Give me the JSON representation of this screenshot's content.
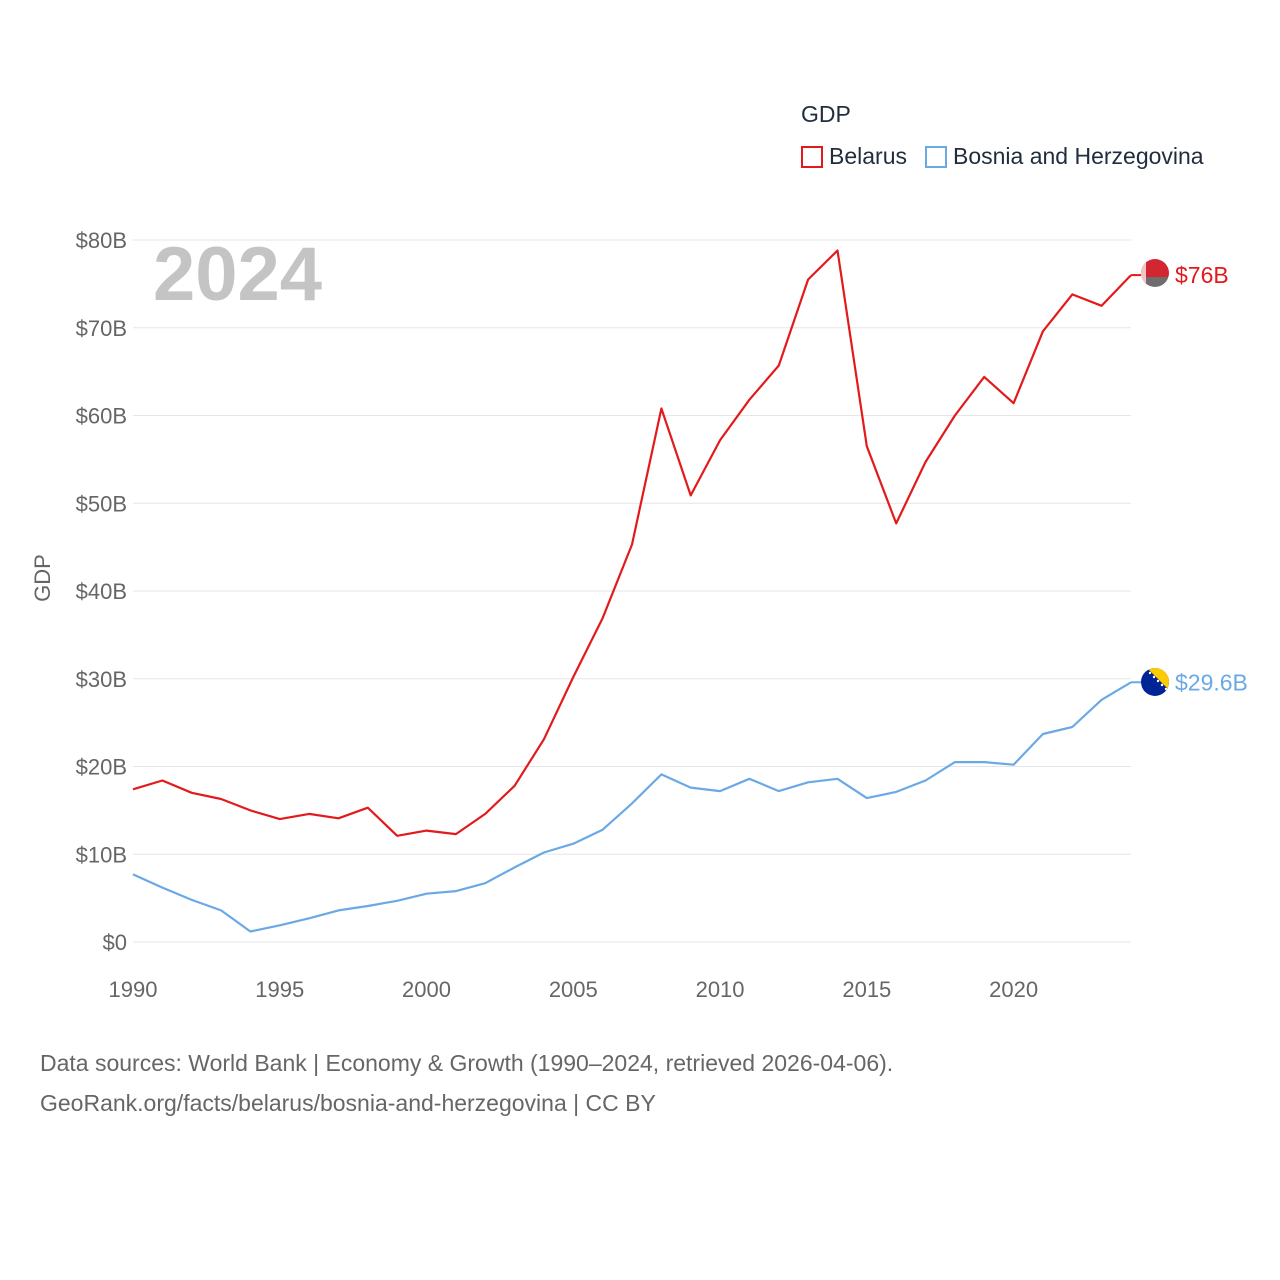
{
  "chart_data": {
    "type": "line",
    "year_label": "2024",
    "ylabel": "GDP",
    "ylim": [
      0,
      80
    ],
    "yticks": [
      {
        "value": 0,
        "label": "$0"
      },
      {
        "value": 10,
        "label": "$10B"
      },
      {
        "value": 20,
        "label": "$20B"
      },
      {
        "value": 30,
        "label": "$30B"
      },
      {
        "value": 40,
        "label": "$40B"
      },
      {
        "value": 50,
        "label": "$50B"
      },
      {
        "value": 60,
        "label": "$60B"
      },
      {
        "value": 70,
        "label": "$70B"
      },
      {
        "value": 80,
        "label": "$80B"
      }
    ],
    "xlim": [
      1990,
      2024
    ],
    "xticks": [
      {
        "value": 1990,
        "label": "1990"
      },
      {
        "value": 1995,
        "label": "1995"
      },
      {
        "value": 2000,
        "label": "2000"
      },
      {
        "value": 2005,
        "label": "2005"
      },
      {
        "value": 2010,
        "label": "2010"
      },
      {
        "value": 2015,
        "label": "2015"
      },
      {
        "value": 2020,
        "label": "2020"
      }
    ],
    "x": [
      1990,
      1991,
      1992,
      1993,
      1994,
      1995,
      1996,
      1997,
      1998,
      1999,
      2000,
      2001,
      2002,
      2003,
      2004,
      2005,
      2006,
      2007,
      2008,
      2009,
      2010,
      2011,
      2012,
      2013,
      2014,
      2015,
      2016,
      2017,
      2018,
      2019,
      2020,
      2021,
      2022,
      2023,
      2024
    ],
    "series": [
      {
        "name": "Belarus",
        "color": "#e31a1c",
        "end_label": "$76B",
        "flag": "belarus-flag-icon",
        "values": [
          17.4,
          18.4,
          17.0,
          16.3,
          15.0,
          14.0,
          14.6,
          14.1,
          15.3,
          12.1,
          12.7,
          12.3,
          14.6,
          17.8,
          23.1,
          30.2,
          36.9,
          45.3,
          60.8,
          50.9,
          57.2,
          61.8,
          65.7,
          75.5,
          78.8,
          56.5,
          47.7,
          54.7,
          60.0,
          64.4,
          61.4,
          69.6,
          73.8,
          72.5,
          76.0
        ]
      },
      {
        "name": "Bosnia and Herzegovina",
        "color": "#6aa9e4",
        "end_label": "$29.6B",
        "flag": "bosnia-flag-icon",
        "values": [
          7.7,
          6.2,
          4.8,
          3.6,
          1.2,
          1.9,
          2.7,
          3.6,
          4.1,
          4.7,
          5.5,
          5.8,
          6.7,
          8.5,
          10.2,
          11.2,
          12.8,
          15.8,
          19.1,
          17.6,
          17.2,
          18.6,
          17.2,
          18.2,
          18.6,
          16.4,
          17.1,
          18.4,
          20.5,
          20.5,
          20.2,
          23.7,
          24.5,
          27.6,
          29.6
        ]
      }
    ]
  },
  "legend": {
    "title": "GDP",
    "items": [
      "Belarus",
      "Bosnia and Herzegovina"
    ]
  },
  "source": {
    "line1": "Data sources: World Bank | Economy & Growth (1990–2024, retrieved 2026-04-06).",
    "line2": "GeoRank.org/facts/belarus/bosnia-and-herzegovina | CC BY"
  }
}
